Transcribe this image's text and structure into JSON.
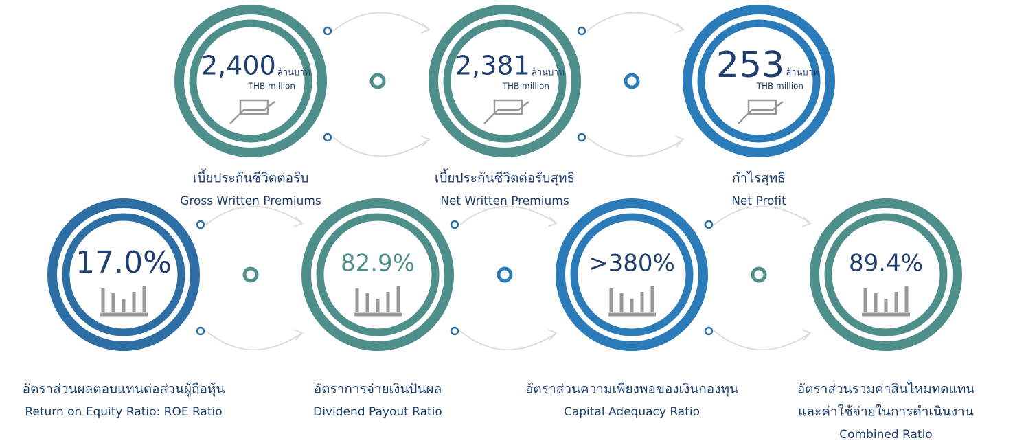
{
  "items": [
    {
      "value": "2,400",
      "unit_th": "ล้านบาท",
      "unit_en": "THB million",
      "label": [
        "เบี้ยประกันชีวิตต่อรับ",
        "Gross Written Premiums"
      ],
      "color": "#4e8f8b"
    },
    {
      "value": "2,381",
      "unit_th": "ล้านบาท",
      "unit_en": "THB million",
      "label": [
        "เบี้ยประกันชีวิตต่อรับสุทธิ",
        "Net Written Premiums"
      ],
      "color": "#4e8f8b"
    },
    {
      "value": "253",
      "unit_th": "ล้านบาท",
      "unit_en": "THB million",
      "label": [
        "กำไรสุทธิ",
        "Net Profit"
      ],
      "color": "#2b7bb9"
    },
    {
      "value": "17.0%",
      "label": [
        "อัตราส่วนผลตอบแทนต่อส่วนผู้ถือหุ้น",
        "Return on Equity Ratio: ROE Ratio"
      ],
      "color": "#2d6fa5"
    },
    {
      "value": "82.9%",
      "label": [
        "อัตราการจ่ายเงินปันผล",
        "Dividend Payout Ratio"
      ],
      "color": "#4e8f8b"
    },
    {
      "value": ">380%",
      "label": [
        "อัตราส่วนความเพียงพอของเงินกองทุน",
        "Capital Adequacy Ratio"
      ],
      "color": "#2b7bb9"
    },
    {
      "value": "89.4%",
      "label": [
        "อัตราส่วนรวมค่าสินไหมทดแทน",
        "และค่าใช้จ่ายในการดำเนินงาน",
        "Combined Ratio"
      ],
      "color": "#4e8f8b"
    }
  ]
}
